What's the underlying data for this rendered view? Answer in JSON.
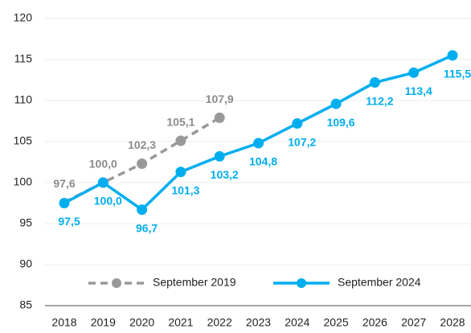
{
  "chart_data": {
    "type": "line",
    "categories": [
      "2018",
      "2019",
      "2020",
      "2021",
      "2022",
      "2023",
      "2024",
      "2025",
      "2026",
      "2027",
      "2028"
    ],
    "series": [
      {
        "name": "September 2019",
        "color": "#999999",
        "dashed": true,
        "values": [
          97.6,
          100.0,
          102.3,
          105.1,
          107.9,
          null,
          null,
          null,
          null,
          null,
          null
        ],
        "value_labels": [
          "97,6",
          "100,0",
          "102,3",
          "105,1",
          "107,9",
          null,
          null,
          null,
          null,
          null,
          null
        ]
      },
      {
        "name": "September 2024",
        "color": "#00aeef",
        "dashed": false,
        "values": [
          97.5,
          100.0,
          96.7,
          101.3,
          103.2,
          104.8,
          107.2,
          109.6,
          112.2,
          113.4,
          115.5
        ],
        "value_labels": [
          "97,5",
          "100,0",
          "96,7",
          "101,3",
          "103,2",
          "104,8",
          "107,2",
          "109,6",
          "112,2",
          "113,4",
          "115,5"
        ]
      }
    ],
    "ylim": [
      85,
      120
    ],
    "yticks": [
      85,
      90,
      95,
      100,
      105,
      110,
      115,
      120
    ],
    "grid": true,
    "legend": "bottom"
  }
}
